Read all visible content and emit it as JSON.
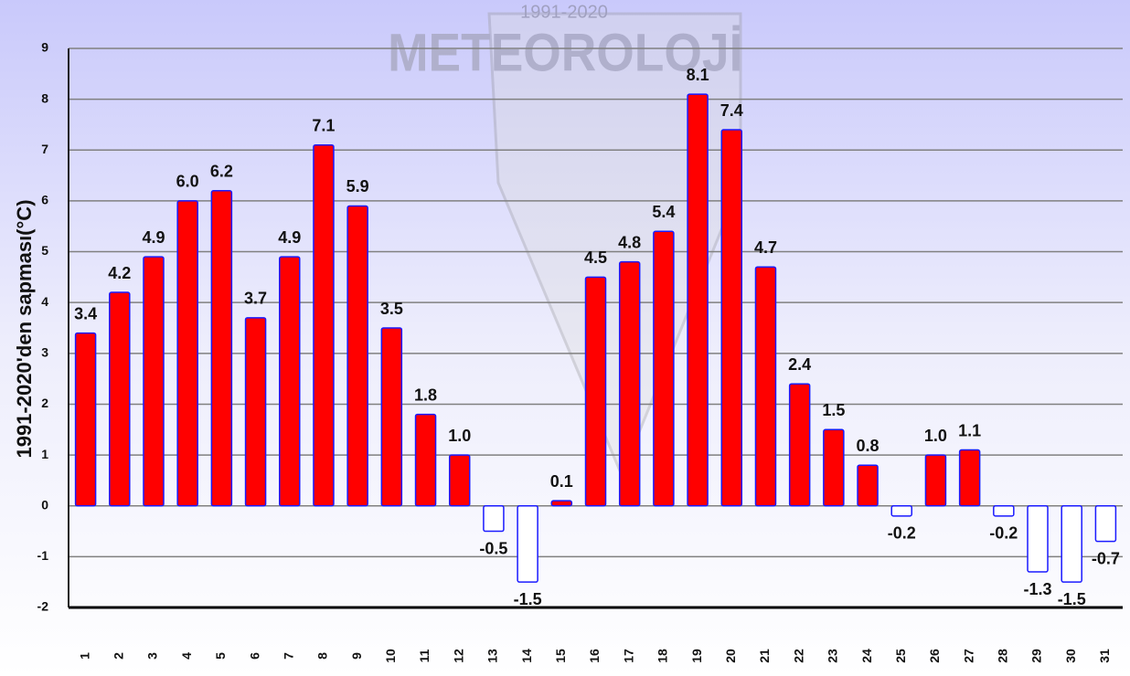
{
  "chart_data": {
    "type": "bar",
    "watermark": [
      "1991-2020",
      "METEOROLOJİ"
    ],
    "y_label": "1991-2020'den sapması(°C)",
    "categories": [
      "1",
      "2",
      "3",
      "4",
      "5",
      "6",
      "7",
      "8",
      "9",
      "10",
      "11",
      "12",
      "13",
      "14",
      "15",
      "16",
      "17",
      "18",
      "19",
      "20",
      "21",
      "22",
      "23",
      "24",
      "25",
      "26",
      "27",
      "28",
      "29",
      "30",
      "31"
    ],
    "values": [
      3.4,
      4.2,
      4.9,
      6.0,
      6.2,
      3.7,
      4.9,
      7.1,
      5.9,
      3.5,
      1.8,
      1.0,
      -0.5,
      -1.5,
      0.1,
      4.5,
      4.8,
      5.4,
      8.1,
      7.4,
      4.7,
      2.4,
      1.5,
      0.8,
      -0.2,
      1.0,
      1.1,
      -0.2,
      -1.3,
      -1.5,
      -0.7
    ],
    "value_labels": [
      "3.4",
      "4.2",
      "4.9",
      "6.0",
      "6.2",
      "3.7",
      "4.9",
      "7.1",
      "5.9",
      "3.5",
      "1.8",
      "1.0",
      "-0.5",
      "-1.5",
      "0.1",
      "4.5",
      "4.8",
      "5.4",
      "8.1",
      "7.4",
      "4.7",
      "2.4",
      "1.5",
      "0.8",
      "-0.2",
      "1.0",
      "1.1",
      "-0.2",
      "-1.3",
      "-1.5",
      "-0.7"
    ],
    "color": "#ff0000",
    "negative_color": "#ffffff",
    "edge_color": "#1a1aff",
    "ylim": [
      -2,
      9
    ],
    "yticks": [
      -2,
      -1,
      0,
      1,
      2,
      3,
      4,
      5,
      6,
      7,
      8,
      9
    ],
    "grid": true
  }
}
